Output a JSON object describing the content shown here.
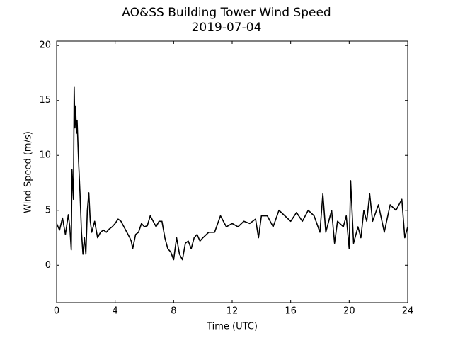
{
  "chart_data": {
    "type": "line",
    "title": "AO&SS Building Tower Wind Speed",
    "subtitle": "2019-07-04",
    "x_label": "Time (UTC)",
    "y_label": "Wind Speed (m/s)",
    "color": "#000000",
    "x": [
      0,
      0.2,
      0.4,
      0.6,
      0.8,
      0.9,
      1.0,
      1.05,
      1.15,
      1.2,
      1.25,
      1.3,
      1.35,
      1.4,
      1.5,
      1.6,
      1.7,
      1.8,
      1.9,
      2.0,
      2.1,
      2.2,
      2.3,
      2.4,
      2.6,
      2.8,
      3.0,
      3.2,
      3.4,
      3.6,
      3.8,
      4.0,
      4.2,
      4.4,
      4.6,
      4.8,
      5.0,
      5.1,
      5.2,
      5.4,
      5.6,
      5.8,
      6.0,
      6.2,
      6.4,
      6.6,
      6.8,
      7.0,
      7.2,
      7.4,
      7.6,
      7.8,
      8.0,
      8.2,
      8.4,
      8.6,
      8.8,
      9.0,
      9.2,
      9.4,
      9.6,
      9.8,
      10.0,
      10.4,
      10.8,
      11.2,
      11.6,
      12.0,
      12.4,
      12.8,
      13.2,
      13.6,
      13.8,
      14.0,
      14.4,
      14.8,
      15.2,
      15.6,
      16.0,
      16.4,
      16.8,
      17.2,
      17.6,
      18.0,
      18.2,
      18.4,
      18.8,
      19.0,
      19.2,
      19.6,
      19.8,
      20.0,
      20.1,
      20.3,
      20.6,
      20.8,
      21.0,
      21.2,
      21.4,
      21.6,
      22.0,
      22.4,
      22.8,
      23.2,
      23.6,
      23.8,
      24.0
    ],
    "values": [
      3.8,
      3.2,
      4.3,
      2.8,
      4.6,
      3.5,
      1.4,
      8.7,
      6.0,
      16.2,
      12.5,
      14.5,
      12.0,
      13.2,
      9.5,
      6.5,
      3.0,
      1.0,
      2.5,
      1.0,
      5.0,
      6.6,
      4.0,
      3.0,
      4.0,
      2.5,
      3.0,
      3.2,
      3.0,
      3.3,
      3.5,
      3.8,
      4.2,
      4.0,
      3.5,
      3.0,
      2.5,
      2.2,
      1.5,
      2.8,
      3.0,
      3.8,
      3.5,
      3.6,
      4.5,
      4.0,
      3.5,
      4.0,
      4.0,
      2.5,
      1.5,
      1.2,
      0.5,
      2.5,
      1.0,
      0.5,
      2.0,
      2.2,
      1.5,
      2.5,
      2.8,
      2.2,
      2.5,
      3.0,
      3.0,
      4.5,
      3.5,
      3.8,
      3.5,
      4.0,
      3.8,
      4.2,
      2.5,
      4.5,
      4.5,
      3.5,
      5.0,
      4.5,
      4.0,
      4.8,
      4.0,
      5.0,
      4.5,
      3.0,
      6.5,
      3.0,
      5.0,
      2.0,
      4.0,
      3.5,
      4.5,
      1.5,
      7.7,
      2.0,
      3.5,
      2.5,
      5.0,
      4.0,
      6.5,
      4.0,
      5.5,
      3.0,
      5.5,
      5.0,
      6.0,
      2.5,
      3.5
    ],
    "xlim": [
      0,
      24
    ],
    "ylim": [
      -3.4,
      20.4
    ],
    "xticks": [
      0,
      4,
      8,
      12,
      16,
      20,
      24
    ],
    "yticks": [
      0,
      5,
      10,
      15,
      20
    ]
  }
}
